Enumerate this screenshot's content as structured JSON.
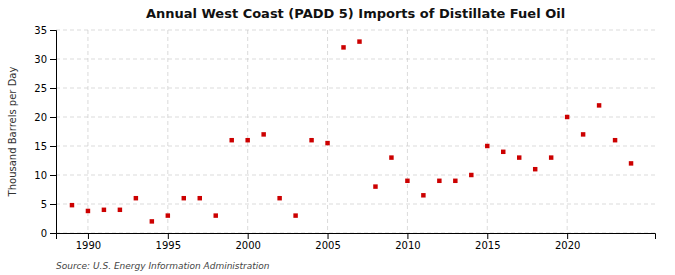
{
  "chart_data": {
    "type": "scatter",
    "title": "Annual West Coast (PADD 5) Imports of Distillate Fuel Oil",
    "y_label": "Thousand Barrels per Day",
    "annotations": [
      "Source: U.S. Energy Information Administration"
    ],
    "x": [
      1989,
      1990,
      1991,
      1992,
      1993,
      1994,
      1995,
      1996,
      1997,
      1998,
      1999,
      2000,
      2001,
      2002,
      2003,
      2004,
      2005,
      2006,
      2007,
      2008,
      2009,
      2010,
      2011,
      2012,
      2013,
      2014,
      2015,
      2016,
      2017,
      2018,
      2019,
      2020,
      2021,
      2022,
      2023,
      2024
    ],
    "values": [
      4.8,
      3.8,
      4.0,
      4.0,
      6.0,
      2.0,
      3.0,
      6.0,
      6.0,
      3.0,
      16.0,
      16.0,
      17.0,
      6.0,
      3.0,
      16.0,
      15.5,
      32.0,
      33.0,
      8.0,
      13.0,
      9.0,
      6.5,
      9.0,
      9.0,
      10.0,
      15.0,
      14.0,
      13.0,
      11.0,
      13.0,
      20.0,
      17.0,
      22.0,
      16.0,
      12.0
    ],
    "color": "#cc0000",
    "marker": "square",
    "xlim": [
      1988.0,
      2025.5
    ],
    "xticks": [
      1990,
      1995,
      2000,
      2005,
      2010,
      2015,
      2020
    ],
    "ylim": [
      0,
      35
    ],
    "yticks": [
      0,
      5,
      10,
      15,
      20,
      25,
      30,
      35
    ],
    "grid": true
  }
}
